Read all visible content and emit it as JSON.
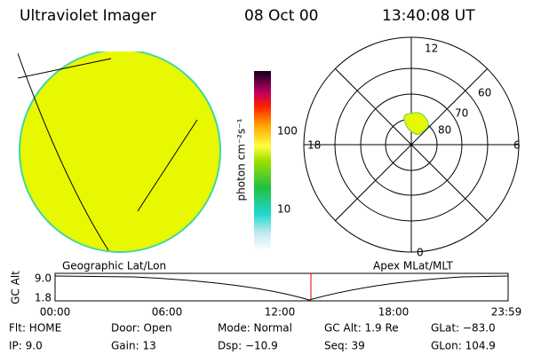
{
  "header": {
    "title": "Ultraviolet Imager",
    "date": "08 Oct 00",
    "time": "13:40:08 UT"
  },
  "colorbar": {
    "label": "photon cm⁻²s⁻¹",
    "ticks": [
      "100",
      "10"
    ]
  },
  "polar": {
    "mlt_labels": [
      "12",
      "18",
      "6",
      "0"
    ],
    "lat_labels": [
      "60",
      "70",
      "80"
    ]
  },
  "timeline": {
    "left_title": "Geographic Lat/Lon",
    "right_title": "Apex MLat/MLT",
    "y_label": "GC Alt",
    "y_ticks": [
      "9.0",
      "1.8"
    ],
    "x_ticks": [
      "00:00",
      "06:00",
      "12:00",
      "18:00",
      "23:59"
    ]
  },
  "info": {
    "rows": [
      [
        "Flt: HOME",
        "Door: Open",
        "Mode: Normal",
        "GC Alt: 1.9 Re",
        "GLat: −83.0"
      ],
      [
        "IP: 9.0",
        "Gain: 13",
        "Dsp: −10.9",
        "Seq: 39",
        "GLon: 104.9"
      ]
    ]
  }
}
